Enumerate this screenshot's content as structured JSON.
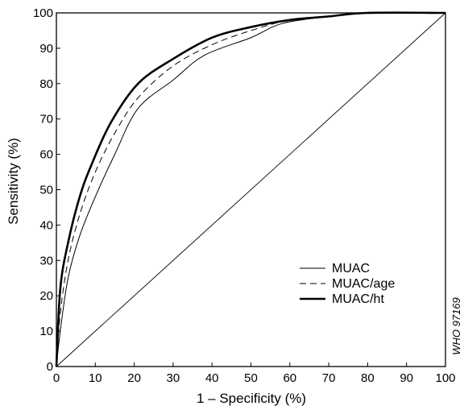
{
  "chart_data": {
    "type": "line",
    "xlabel": "1 – Specificity (%)",
    "ylabel": "Sensitivity (%)",
    "xlim": [
      0,
      100
    ],
    "ylim": [
      0,
      100
    ],
    "xticks": [
      "0",
      "10",
      "20",
      "30",
      "40",
      "50",
      "60",
      "70",
      "80",
      "90",
      "100"
    ],
    "yticks": [
      "0",
      "10",
      "20",
      "30",
      "40",
      "50",
      "60",
      "70",
      "80",
      "90",
      "100"
    ],
    "grid": false,
    "legend_position": "bottom-right",
    "watermark": "WHO 97169",
    "reference_line": {
      "x": [
        0,
        100
      ],
      "y": [
        0,
        100
      ]
    },
    "series": [
      {
        "name": "MUAC",
        "style": "solid-thin",
        "x": [
          0,
          1,
          3,
          6,
          10,
          15,
          21,
          30,
          38,
          50,
          58,
          70,
          80,
          100
        ],
        "y": [
          0,
          10,
          25,
          37,
          48,
          60,
          73,
          81,
          88,
          93,
          97,
          99,
          100,
          100
        ]
      },
      {
        "name": "MUAC/age",
        "style": "dashed",
        "x": [
          0,
          1,
          3,
          6,
          10,
          15,
          21,
          30,
          40,
          50,
          60,
          70,
          80,
          100
        ],
        "y": [
          0,
          15,
          30,
          43,
          55,
          66,
          76,
          85,
          91,
          95,
          98,
          99,
          100,
          100
        ]
      },
      {
        "name": "MUAC/ht",
        "style": "solid-thick",
        "x": [
          0,
          1,
          3,
          6,
          9,
          14,
          21,
          30,
          40,
          50,
          60,
          70,
          80,
          100
        ],
        "y": [
          0,
          22,
          35,
          48,
          57,
          69,
          80,
          87,
          93,
          96,
          98,
          99,
          100,
          100
        ]
      }
    ]
  }
}
